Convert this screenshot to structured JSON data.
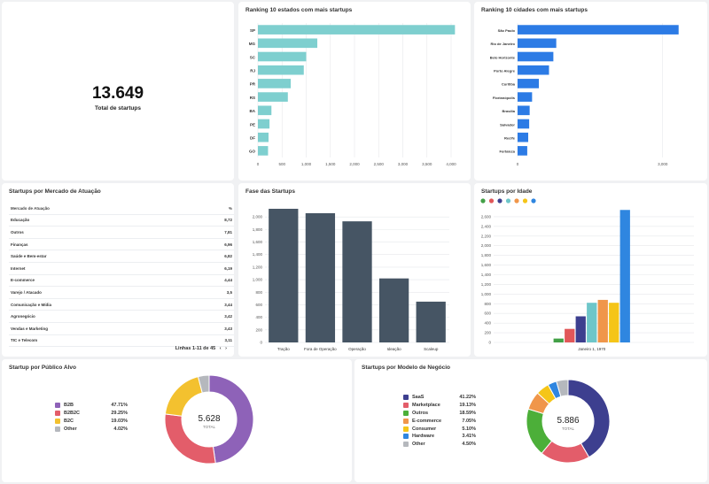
{
  "kpi": {
    "value": "13.649",
    "label": "Total de startups"
  },
  "states": {
    "title": "Ranking 10 estados com mais startups",
    "chart_data": {
      "type": "bar",
      "orientation": "horizontal",
      "categories": [
        "SP",
        "MG",
        "SC",
        "RJ",
        "PR",
        "RS",
        "BA",
        "PE",
        "DF",
        "GO"
      ],
      "values": [
        4080,
        1230,
        1000,
        950,
        680,
        620,
        280,
        240,
        220,
        210
      ],
      "xlim": [
        0,
        4000
      ],
      "xticks": [
        "0",
        "500",
        "1,000",
        "1,500",
        "2,000",
        "2,500",
        "3,000",
        "3,500",
        "4,000"
      ],
      "color": "#7ecfcf"
    }
  },
  "cities": {
    "title": "Ranking 10 cidades com mais startups",
    "chart_data": {
      "type": "bar",
      "orientation": "horizontal",
      "categories": [
        "São Paulo",
        "Rio de Janeiro",
        "Belo Horizonte",
        "Porto Alegre",
        "Curitiba",
        "Florianópolis",
        "Brasília",
        "Salvador",
        "Recife",
        "Fortaleza"
      ],
      "values": [
        3330,
        800,
        740,
        650,
        440,
        300,
        250,
        240,
        220,
        200
      ],
      "xlim": [
        0,
        3500
      ],
      "xticks": [
        "0",
        "3,000"
      ],
      "color": "#2c7be5"
    }
  },
  "market": {
    "title": "Startups por Mercado de Atuação",
    "header": [
      "Mercado de Atuação",
      "%"
    ],
    "rows": [
      [
        "Educação",
        "8,72"
      ],
      [
        "Outros",
        "7,81"
      ],
      [
        "Finanças",
        "6,96"
      ],
      [
        "Saúde e Bem-estar",
        "6,82"
      ],
      [
        "Internet",
        "6,19"
      ],
      [
        "E-commerce",
        "4,44"
      ],
      [
        "Varejo / Atacado",
        "3,5"
      ],
      [
        "Comunicação e Mídia",
        "3,44"
      ],
      [
        "Agronegócio",
        "3,42"
      ],
      [
        "Vendas e Marketing",
        "3,43"
      ],
      [
        "TIC e Telecom",
        "3,11"
      ]
    ],
    "pager": "Linhas 1-11 de 45"
  },
  "phase": {
    "title": "Fase das Startups",
    "chart_data": {
      "type": "bar",
      "categories": [
        "Tração",
        "Fora de Operação",
        "Operação",
        "Ideação",
        "Scaleup"
      ],
      "values": [
        2130,
        2060,
        1930,
        1020,
        650
      ],
      "ylim": [
        0,
        2200
      ],
      "yticks": [
        "0",
        "200",
        "400",
        "600",
        "800",
        "1,000",
        "1,200",
        "1,400",
        "1,600",
        "1,800",
        "2,000"
      ],
      "color": "#465564"
    }
  },
  "age": {
    "title": "Startups por Idade",
    "legend_colors": [
      "#43a047",
      "#e15759",
      "#3d3f8f",
      "#6ec6c9",
      "#f0964a",
      "#f5c518",
      "#2f86e0"
    ],
    "chart_data": {
      "type": "bar",
      "categories": [
        "Janeiro 1, 1970"
      ],
      "series": [
        {
          "values": [
            80
          ],
          "color": "#43a047"
        },
        {
          "values": [
            280
          ],
          "color": "#e15759"
        },
        {
          "values": [
            540
          ],
          "color": "#3d3f8f"
        },
        {
          "values": [
            820
          ],
          "color": "#6ec6c9"
        },
        {
          "values": [
            880
          ],
          "color": "#f0964a"
        },
        {
          "values": [
            820
          ],
          "color": "#f5c518"
        },
        {
          "values": [
            2740
          ],
          "color": "#2f86e0"
        }
      ],
      "ylim": [
        0,
        2800
      ],
      "yticks": [
        "0",
        "200",
        "400",
        "600",
        "800",
        "1,000",
        "1,200",
        "1,400",
        "1,600",
        "1,800",
        "2,000",
        "2,200",
        "2,400",
        "2,600"
      ]
    }
  },
  "audience": {
    "title": "Startup por Público Alvo",
    "total": "5.628",
    "total_label": "TOTAL",
    "chart_data": {
      "type": "pie",
      "donut": true,
      "labels": [
        "B2B",
        "B2B2C",
        "B2C",
        "Other"
      ],
      "values": [
        47.71,
        29.25,
        19.03,
        4.02
      ],
      "display": [
        "47.71%",
        "29.25%",
        "19.03%",
        "4.02%"
      ],
      "colors": [
        "#8e62b8",
        "#e35d6a",
        "#f3c12f",
        "#b5b8bd"
      ]
    }
  },
  "model": {
    "title": "Startups por Modelo de Negócio",
    "total": "5.886",
    "total_label": "TOTAL",
    "chart_data": {
      "type": "pie",
      "donut": true,
      "labels": [
        "SaaS",
        "Marketplace",
        "Outros",
        "E-commerce",
        "Consumer",
        "Hardware",
        "Other"
      ],
      "values": [
        41.22,
        19.13,
        18.59,
        7.05,
        5.1,
        3.41,
        4.5
      ],
      "display": [
        "41.22%",
        "19.13%",
        "18.59%",
        "7.05%",
        "5.10%",
        "3.41%",
        "4.50%"
      ],
      "colors": [
        "#3d3f8f",
        "#e35d6a",
        "#4caf39",
        "#f0964a",
        "#f5c518",
        "#2f86e0",
        "#b5b8bd"
      ]
    }
  }
}
